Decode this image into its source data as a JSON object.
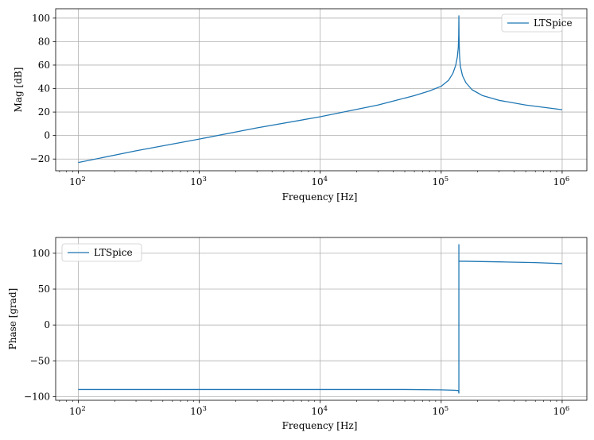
{
  "chart_data": [
    {
      "type": "line",
      "x_scale": "log",
      "xlabel": "Frequency [Hz]",
      "ylabel": "Mag [dB]",
      "xlim": [
        65,
        1600000
      ],
      "ylim": [
        -30,
        108
      ],
      "grid": true,
      "legend_position": "upper right",
      "x_tick_values": [
        100,
        1000,
        10000,
        100000,
        1000000
      ],
      "x_tick_labels": [
        {
          "base": "10",
          "exp": "2"
        },
        {
          "base": "10",
          "exp": "3"
        },
        {
          "base": "10",
          "exp": "4"
        },
        {
          "base": "10",
          "exp": "5"
        },
        {
          "base": "10",
          "exp": "6"
        }
      ],
      "y_ticks": [
        -20,
        0,
        20,
        40,
        60,
        80,
        100
      ],
      "y_tick_labels": [
        "−20",
        "0",
        "20",
        "40",
        "60",
        "80",
        "100"
      ],
      "series": [
        {
          "name": "LTSpice",
          "color": "#1f77b4",
          "x": [
            100,
            300,
            1000,
            3000,
            10000,
            30000,
            60000,
            80000,
            100000,
            115000,
            125000,
            132000,
            136000,
            138500,
            139500,
            140000,
            140500,
            141500,
            144000,
            150000,
            160000,
            180000,
            220000,
            300000,
            500000,
            1000000
          ],
          "y": [
            -23,
            -13,
            -3,
            6.5,
            16,
            26,
            34,
            38,
            42,
            47,
            53,
            60,
            67,
            75,
            85,
            102,
            85,
            70,
            59,
            51,
            45,
            39,
            34,
            30,
            26,
            22
          ]
        }
      ]
    },
    {
      "type": "line",
      "x_scale": "log",
      "xlabel": "Frequency [Hz]",
      "ylabel": "Phase [grad]",
      "xlim": [
        65,
        1600000
      ],
      "ylim": [
        -105,
        122
      ],
      "grid": true,
      "legend_position": "upper left",
      "x_tick_values": [
        100,
        1000,
        10000,
        100000,
        1000000
      ],
      "x_tick_labels": [
        {
          "base": "10",
          "exp": "2"
        },
        {
          "base": "10",
          "exp": "3"
        },
        {
          "base": "10",
          "exp": "4"
        },
        {
          "base": "10",
          "exp": "5"
        },
        {
          "base": "10",
          "exp": "6"
        }
      ],
      "y_ticks": [
        -100,
        -50,
        0,
        50,
        100
      ],
      "y_tick_labels": [
        "−100",
        "−50",
        "0",
        "50",
        "100"
      ],
      "series": [
        {
          "name": "LTSpice",
          "color": "#1f77b4",
          "x": [
            100,
            1000,
            10000,
            50000,
            100000,
            130000,
            139000,
            140000,
            140000,
            140000,
            140000,
            140500,
            300000,
            600000,
            1000000
          ],
          "y": [
            -90,
            -90,
            -90,
            -90,
            -90.5,
            -91,
            -91.5,
            -95,
            112,
            89,
            89,
            89,
            88,
            87,
            85.5
          ]
        }
      ]
    }
  ]
}
